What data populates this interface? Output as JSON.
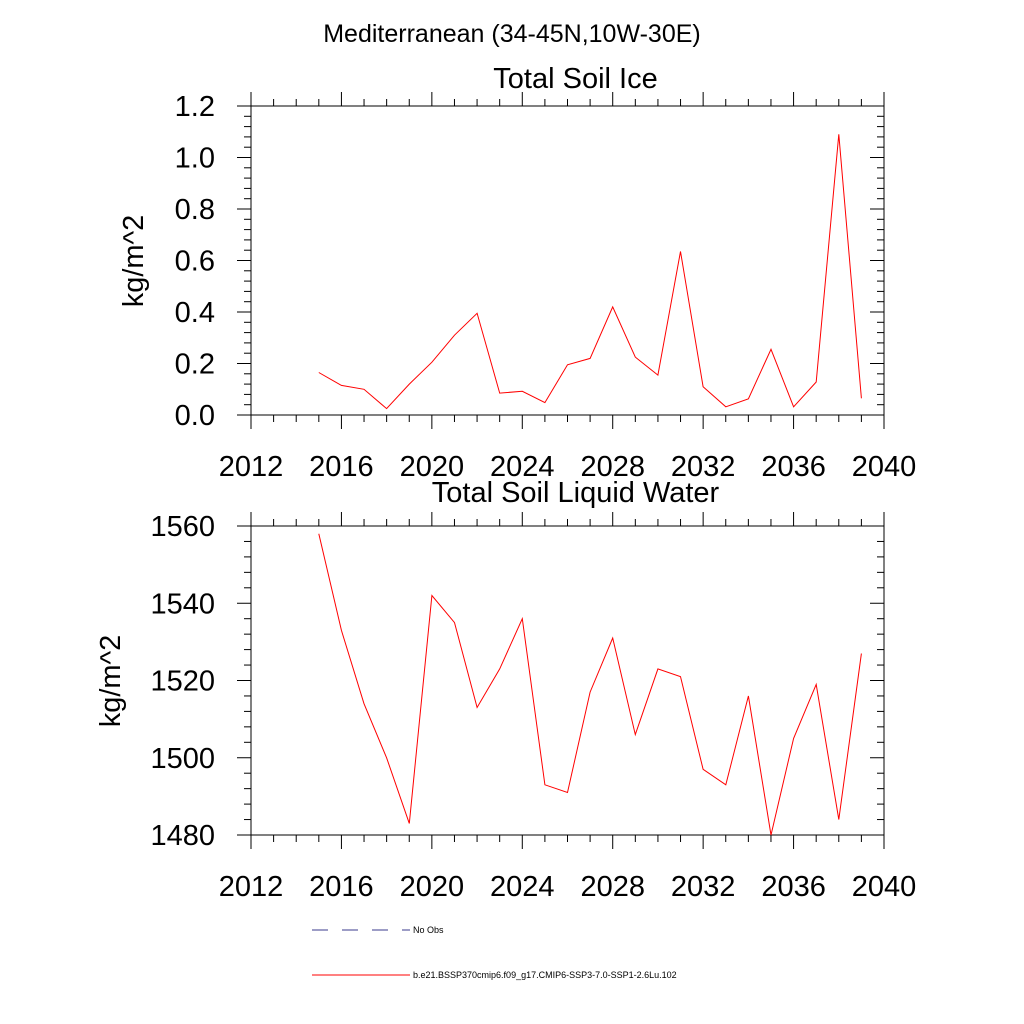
{
  "figure": {
    "title": "Mediterranean (34-45N,10W-30E)"
  },
  "chart_data": [
    {
      "type": "line",
      "title": "Total Soil Ice",
      "xlabel": "",
      "ylabel": "kg/m^2",
      "xlim": [
        2012,
        2040
      ],
      "ylim": [
        0,
        1.2
      ],
      "xticks": [
        2012,
        2016,
        2020,
        2024,
        2028,
        2032,
        2036,
        2040
      ],
      "yticks": [
        "0.0",
        "0.2",
        "0.4",
        "0.6",
        "0.8",
        "1.0",
        "1.2"
      ],
      "grid": false,
      "series": [
        {
          "name": "b.e21.BSSP370cmip6.f09_g17.CMIP6-SSP3-7.0-SSP1-2.6Lu.102",
          "color": "#ff0000",
          "x": [
            2015,
            2016,
            2017,
            2018,
            2019,
            2020,
            2021,
            2022,
            2023,
            2024,
            2025,
            2026,
            2027,
            2028,
            2029,
            2030,
            2031,
            2032,
            2033,
            2034,
            2035,
            2036,
            2037,
            2038,
            2039
          ],
          "y": [
            0.165,
            0.115,
            0.1,
            0.025,
            0.12,
            0.205,
            0.31,
            0.395,
            0.085,
            0.092,
            0.048,
            0.195,
            0.22,
            0.42,
            0.225,
            0.155,
            0.635,
            0.11,
            0.032,
            0.063,
            0.255,
            0.032,
            0.128,
            1.09,
            0.065
          ]
        }
      ]
    },
    {
      "type": "line",
      "title": "Total Soil Liquid Water",
      "xlabel": "",
      "ylabel": "kg/m^2",
      "xlim": [
        2012,
        2040
      ],
      "ylim": [
        1480,
        1560
      ],
      "xticks": [
        2012,
        2016,
        2020,
        2024,
        2028,
        2032,
        2036,
        2040
      ],
      "yticks": [
        "1480",
        "1500",
        "1520",
        "1540",
        "1560"
      ],
      "grid": false,
      "series": [
        {
          "name": "b.e21.BSSP370cmip6.f09_g17.CMIP6-SSP3-7.0-SSP1-2.6Lu.102",
          "color": "#ff0000",
          "x": [
            2015,
            2016,
            2017,
            2018,
            2019,
            2020,
            2021,
            2022,
            2023,
            2024,
            2025,
            2026,
            2027,
            2028,
            2029,
            2030,
            2031,
            2032,
            2033,
            2034,
            2035,
            2036,
            2037,
            2038,
            2039
          ],
          "y": [
            1558,
            1533,
            1514,
            1500,
            1483,
            1542,
            1535,
            1513,
            1523,
            1536,
            1493,
            1491,
            1517,
            1531,
            1506,
            1523,
            1521,
            1497,
            1493,
            1516,
            1480,
            1505,
            1519,
            1484,
            1527
          ]
        }
      ]
    }
  ],
  "legend": {
    "placement": "bottom-center",
    "entries": [
      {
        "label": "No Obs",
        "style": "dashed",
        "color": "#3b3b8c"
      },
      {
        "label": "b.e21.BSSP370cmip6.f09_g17.CMIP6-SSP3-7.0-SSP1-2.6Lu.102",
        "style": "solid",
        "color": "#ff0000"
      }
    ]
  }
}
